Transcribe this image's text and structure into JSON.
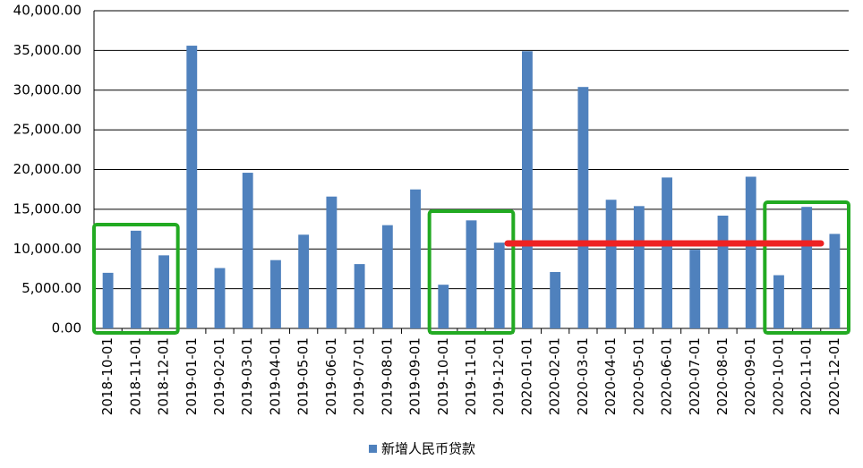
{
  "chart_data": {
    "type": "bar",
    "categories": [
      "2018-10-01",
      "2018-11-01",
      "2018-12-01",
      "2019-01-01",
      "2019-02-01",
      "2019-03-01",
      "2019-04-01",
      "2019-05-01",
      "2019-06-01",
      "2019-07-01",
      "2019-08-01",
      "2019-09-01",
      "2019-10-01",
      "2019-11-01",
      "2019-12-01",
      "2020-01-01",
      "2020-02-01",
      "2020-03-01",
      "2020-04-01",
      "2020-05-01",
      "2020-06-01",
      "2020-07-01",
      "2020-08-01",
      "2020-09-01",
      "2020-10-01",
      "2020-11-01",
      "2020-12-01"
    ],
    "series": [
      {
        "name": "新增人民币贷款",
        "color": "#4f81bd",
        "values": [
          7000,
          12300,
          9200,
          35600,
          7600,
          19600,
          8600,
          11800,
          16600,
          8100,
          13000,
          17500,
          5500,
          13600,
          10800,
          34900,
          7100,
          30400,
          16200,
          15400,
          19000,
          9900,
          14200,
          19100,
          6700,
          15300,
          11900
        ]
      }
    ],
    "ylim": [
      0,
      40000
    ],
    "yticks": [
      {
        "value": 0,
        "label": "0.00"
      },
      {
        "value": 5000,
        "label": "5,000.00"
      },
      {
        "value": 10000,
        "label": "10,000.00"
      },
      {
        "value": 15000,
        "label": "15,000.00"
      },
      {
        "value": 20000,
        "label": "20,000.00"
      },
      {
        "value": 25000,
        "label": "25,000.00"
      },
      {
        "value": 30000,
        "label": "30,000.00"
      },
      {
        "value": 35000,
        "label": "35,000.00"
      },
      {
        "value": 40000,
        "label": "40,000.00"
      }
    ],
    "grid": true,
    "legend": "bottom"
  }
}
